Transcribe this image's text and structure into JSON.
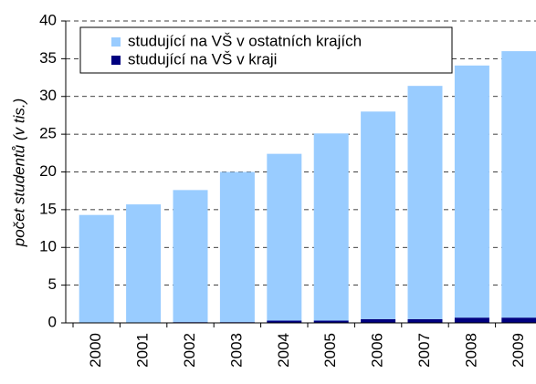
{
  "chart_data": {
    "type": "stacked_bar",
    "y_label": "počet studentů (v tis.)",
    "categories": [
      "2000",
      "2001",
      "2002",
      "2003",
      "2004",
      "2005",
      "2006",
      "2007",
      "2008",
      "2009"
    ],
    "series": [
      {
        "name": "studující na VŠ v ostatních krajích",
        "color": "#99ccff",
        "values": [
          14.3,
          15.7,
          17.5,
          19.9,
          22.1,
          24.8,
          27.5,
          30.9,
          33.4,
          35.3
        ]
      },
      {
        "name": "studující na VŠ v kraji",
        "color": "#000080",
        "values": [
          0,
          0,
          0.1,
          0.1,
          0.3,
          0.3,
          0.5,
          0.5,
          0.7,
          0.7
        ]
      }
    ],
    "ylim": [
      0,
      40
    ],
    "yticks": [
      0,
      5,
      10,
      15,
      20,
      25,
      30,
      35,
      40
    ],
    "grid": true
  }
}
